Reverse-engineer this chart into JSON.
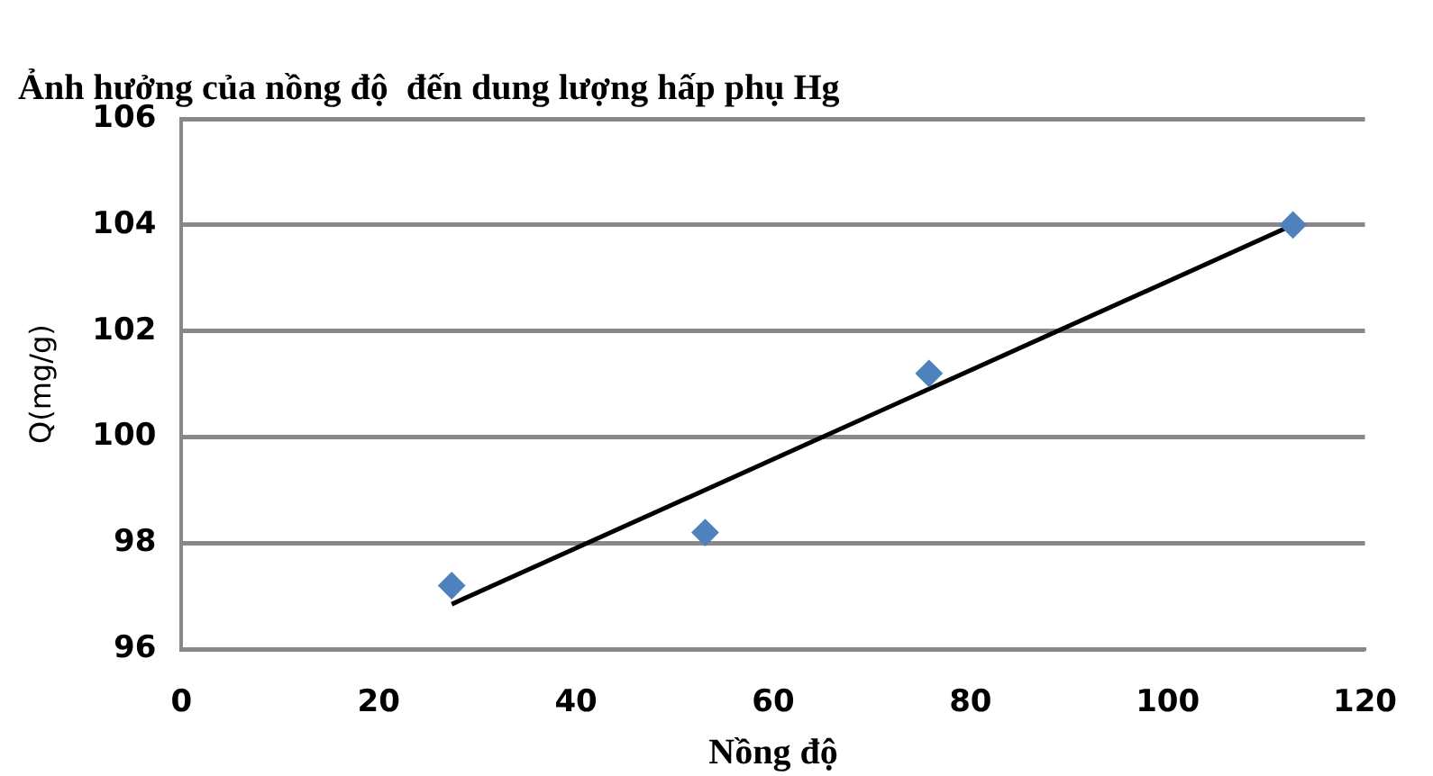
{
  "chart_data": {
    "type": "scatter",
    "title": "Ảnh hưởng của nồng độ  đến dung lượng hấp phụ Hg",
    "xlabel": "Nồng độ",
    "ylabel": "Q(mg/g)",
    "series": [
      {
        "color": "#4f81bd",
        "x": [
          27.4,
          53.1,
          75.8,
          112.7
        ],
        "values": [
          97.2,
          98.2,
          101.2,
          104.0
        ],
        "marker": "diamond"
      },
      {
        "type": "line",
        "color": "#000000",
        "x": [
          27.4,
          112.7
        ],
        "values": [
          96.85,
          104.0
        ],
        "marker": "none"
      }
    ],
    "xlim": [
      0,
      120
    ],
    "xticks": [
      0,
      20,
      40,
      60,
      80,
      100,
      120
    ],
    "ylim": [
      96,
      106
    ],
    "yticks": [
      96,
      98,
      100,
      102,
      104,
      106
    ],
    "grid": "y",
    "legend": false
  }
}
